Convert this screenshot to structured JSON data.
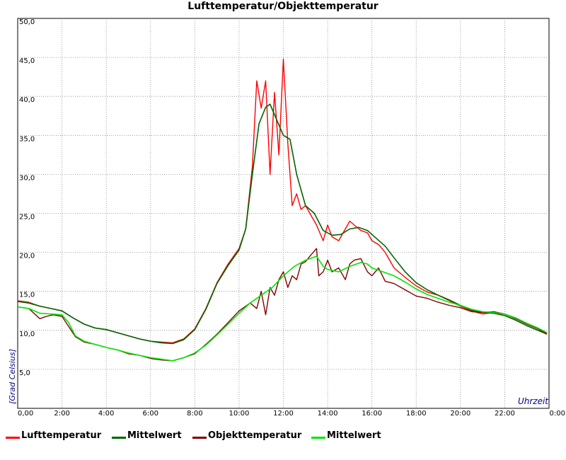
{
  "chart_data": {
    "type": "line",
    "title": "Lufttemperatur/Objekttemperatur",
    "xlabel": "Uhrzeit",
    "ylabel": "[Grad Celsius]",
    "xlim": [
      0,
      24
    ],
    "ylim": [
      0,
      50
    ],
    "x_tick_labels": [
      "0,00",
      "2:00",
      "4:00",
      "6:00",
      "8:00",
      "10:00",
      "12:00",
      "14:00",
      "16:00",
      "18:00",
      "20:00",
      "22:00",
      "0:00"
    ],
    "y_tick_labels": [
      "5,0",
      "10,0",
      "15,0",
      "20,0",
      "25,0",
      "30,0",
      "35,0",
      "40,0",
      "45,0",
      "50,0"
    ],
    "grid": true,
    "legend_position": "bottom",
    "series": [
      {
        "name": "Lufttemperatur",
        "color": "#ff0000",
        "x": [
          0,
          0.5,
          1,
          1.5,
          2,
          2.5,
          3,
          3.5,
          4,
          4.5,
          5,
          5.5,
          6,
          6.5,
          7,
          7.5,
          8,
          8.5,
          9,
          9.5,
          10,
          10.3,
          10.6,
          10.8,
          11,
          11.2,
          11.4,
          11.6,
          11.8,
          12,
          12.2,
          12.4,
          12.6,
          12.8,
          13,
          13.2,
          13.5,
          13.8,
          14,
          14.2,
          14.5,
          14.8,
          15,
          15.2,
          15.5,
          15.8,
          16,
          16.3,
          16.6,
          17,
          17.5,
          18,
          18.5,
          19,
          19.5,
          20,
          20.5,
          21,
          21.5,
          22,
          22.5,
          23,
          23.5,
          23.9
        ],
        "y": [
          13.8,
          13.6,
          13.1,
          12.8,
          12.5,
          11.6,
          10.8,
          10.3,
          10.1,
          9.7,
          9.3,
          8.9,
          8.6,
          8.5,
          8.4,
          8.9,
          10.2,
          12.8,
          16.1,
          18.5,
          20.5,
          23,
          31,
          42,
          38.5,
          42,
          30,
          40.5,
          32.5,
          44.8,
          34,
          26,
          27.5,
          25.5,
          26,
          25,
          23.5,
          21.5,
          23.5,
          22,
          21.5,
          23,
          24,
          23.5,
          22.8,
          22.5,
          21.5,
          21,
          20,
          18,
          16.8,
          15.7,
          14.9,
          14.5,
          13.8,
          13.1,
          12.5,
          12.1,
          12.3,
          11.9,
          11.3,
          10.6,
          10,
          9.5
        ]
      },
      {
        "name": "Mittelwert",
        "color": "#006400",
        "x": [
          0,
          0.5,
          1,
          1.5,
          2,
          2.5,
          3,
          3.5,
          4,
          4.5,
          5,
          5.5,
          6,
          6.5,
          7,
          7.5,
          8,
          8.5,
          9,
          9.5,
          10,
          10.3,
          10.6,
          10.9,
          11.2,
          11.4,
          11.7,
          12,
          12.3,
          12.6,
          13,
          13.4,
          13.8,
          14.2,
          14.6,
          15,
          15.4,
          15.8,
          16.2,
          16.6,
          17,
          17.5,
          18,
          18.5,
          19,
          19.5,
          20,
          20.5,
          21,
          21.5,
          22,
          22.5,
          23,
          23.5,
          23.9
        ],
        "y": [
          13.7,
          13.5,
          13.1,
          12.8,
          12.5,
          11.6,
          10.8,
          10.3,
          10.1,
          9.7,
          9.3,
          8.9,
          8.6,
          8.4,
          8.3,
          8.8,
          10.1,
          12.7,
          16,
          18.3,
          20.3,
          23,
          30,
          36.5,
          38.6,
          39,
          37,
          35,
          34.5,
          30,
          26,
          25,
          22.8,
          22.2,
          22.3,
          23,
          23.2,
          22.8,
          21.8,
          20.8,
          19.3,
          17.5,
          16.1,
          15.2,
          14.5,
          13.9,
          13.2,
          12.6,
          12.3,
          12.2,
          11.9,
          11.3,
          10.6,
          10,
          9.6
        ]
      },
      {
        "name": "Objekttemperatur",
        "color": "#800000",
        "x": [
          0,
          0.5,
          1,
          1.3,
          1.6,
          2,
          2.3,
          2.6,
          3,
          3.5,
          4,
          4.5,
          5,
          5.5,
          6,
          6.5,
          7,
          7.5,
          8,
          8.5,
          9,
          9.5,
          10,
          10.5,
          10.8,
          11,
          11.2,
          11.4,
          11.6,
          11.8,
          12,
          12.2,
          12.4,
          12.6,
          12.8,
          13,
          13.2,
          13.5,
          13.6,
          13.8,
          14,
          14.2,
          14.5,
          14.8,
          15,
          15.2,
          15.5,
          15.8,
          16,
          16.3,
          16.6,
          17,
          17.5,
          18,
          18.5,
          19,
          19.5,
          20,
          20.5,
          21,
          21.5,
          22,
          22.5,
          23,
          23.5,
          23.9
        ],
        "y": [
          13,
          12.8,
          11.5,
          11.8,
          12,
          11.8,
          10.5,
          9.2,
          8.5,
          8.2,
          7.8,
          7.5,
          7,
          6.8,
          6.4,
          6.2,
          6.1,
          6.5,
          7,
          8.2,
          9.5,
          11,
          12.5,
          13.5,
          12.8,
          15,
          12,
          15.5,
          14.5,
          16.5,
          17.5,
          15.5,
          17,
          16.5,
          18.5,
          18.8,
          19.5,
          20.5,
          17,
          17.5,
          19,
          17.5,
          18,
          16.5,
          18.5,
          19,
          19.2,
          17.5,
          17,
          18,
          16.3,
          16,
          15.2,
          14.4,
          14.1,
          13.6,
          13.2,
          12.9,
          12.4,
          12.3,
          12.4,
          12.1,
          11.5,
          10.8,
          10.2,
          9.6
        ]
      },
      {
        "name": "Mittelwert",
        "color": "#00e600",
        "x": [
          0,
          0.5,
          1,
          1.5,
          2,
          2.3,
          2.6,
          3,
          3.5,
          4,
          4.5,
          5,
          5.5,
          6,
          6.5,
          7,
          7.5,
          8,
          8.5,
          9,
          9.5,
          10,
          10.5,
          11,
          11.5,
          12,
          12.5,
          13,
          13.5,
          13.8,
          14,
          14.5,
          15,
          15.5,
          15.8,
          16,
          16.5,
          17,
          17.5,
          18,
          18.5,
          19,
          19.5,
          20,
          20.5,
          21,
          21.5,
          22,
          22.5,
          23,
          23.5,
          23.9
        ],
        "y": [
          13,
          12.8,
          12.2,
          12.1,
          12,
          11,
          9.3,
          8.6,
          8.2,
          7.8,
          7.5,
          7.1,
          6.8,
          6.5,
          6.3,
          6.1,
          6.5,
          7.1,
          8.1,
          9.4,
          10.8,
          12.2,
          13.5,
          14.5,
          15.5,
          17,
          18.2,
          19,
          19.5,
          18.2,
          17.8,
          17.5,
          18.2,
          18.7,
          18.5,
          18,
          17.5,
          17,
          16.2,
          15.3,
          14.6,
          14.1,
          13.6,
          13.2,
          12.7,
          12.4,
          12.3,
          12.1,
          11.6,
          10.9,
          10.3,
          9.7
        ]
      }
    ]
  }
}
